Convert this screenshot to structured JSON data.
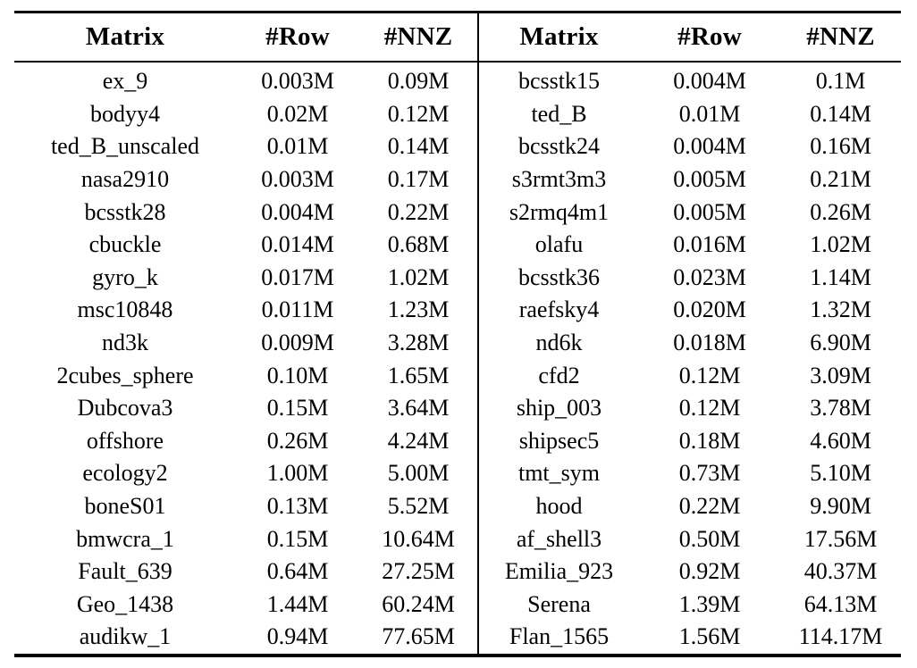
{
  "page": {
    "background_color": "#ffffff",
    "text_color": "#000000",
    "description": "Benchmark sparse-matrix table from an academic paper: matrix name, number of rows and number of non-zeros (in millions), two matrices per row"
  },
  "table": {
    "column_headers": [
      "Matrix",
      "#Row",
      "#NNZ",
      "Matrix",
      "#Row",
      "#NNZ"
    ],
    "rows": [
      [
        "ex_9",
        "0.003M",
        "0.09M",
        "bcsstk15",
        "0.004M",
        "0.1M"
      ],
      [
        "bodyy4",
        "0.02M",
        "0.12M",
        "ted_B",
        "0.01M",
        "0.14M"
      ],
      [
        "ted_B_unscaled",
        "0.01M",
        "0.14M",
        "bcsstk24",
        "0.004M",
        "0.16M"
      ],
      [
        "nasa2910",
        "0.003M",
        "0.17M",
        "s3rmt3m3",
        "0.005M",
        "0.21M"
      ],
      [
        "bcsstk28",
        "0.004M",
        "0.22M",
        "s2rmq4m1",
        "0.005M",
        "0.26M"
      ],
      [
        "cbuckle",
        "0.014M",
        "0.68M",
        "olafu",
        "0.016M",
        "1.02M"
      ],
      [
        "gyro_k",
        "0.017M",
        "1.02M",
        "bcsstk36",
        "0.023M",
        "1.14M"
      ],
      [
        "msc10848",
        "0.011M",
        "1.23M",
        "raefsky4",
        "0.020M",
        "1.32M"
      ],
      [
        "nd3k",
        "0.009M",
        "3.28M",
        "nd6k",
        "0.018M",
        "6.90M"
      ],
      [
        "2cubes_sphere",
        "0.10M",
        "1.65M",
        "cfd2",
        "0.12M",
        "3.09M"
      ],
      [
        "Dubcova3",
        "0.15M",
        "3.64M",
        "ship_003",
        "0.12M",
        "3.78M"
      ],
      [
        "offshore",
        "0.26M",
        "4.24M",
        "shipsec5",
        "0.18M",
        "4.60M"
      ],
      [
        "ecology2",
        "1.00M",
        "5.00M",
        "tmt_sym",
        "0.73M",
        "5.10M"
      ],
      [
        "boneS01",
        "0.13M",
        "5.52M",
        "hood",
        "0.22M",
        "9.90M"
      ],
      [
        "bmwcra_1",
        "0.15M",
        "10.64M",
        "af_shell3",
        "0.50M",
        "17.56M"
      ],
      [
        "Fault_639",
        "0.64M",
        "27.25M",
        "Emilia_923",
        "0.92M",
        "40.37M"
      ],
      [
        "Geo_1438",
        "1.44M",
        "60.24M",
        "Serena",
        "1.39M",
        "64.13M"
      ],
      [
        "audikw_1",
        "0.94M",
        "77.65M",
        "Flan_1565",
        "1.56M",
        "114.17M"
      ]
    ],
    "cell_roles": [
      "matrix-name-cell",
      "row-count-cell",
      "nnz-count-cell",
      "matrix-name-cell",
      "row-count-cell",
      "nnz-count-cell"
    ]
  }
}
